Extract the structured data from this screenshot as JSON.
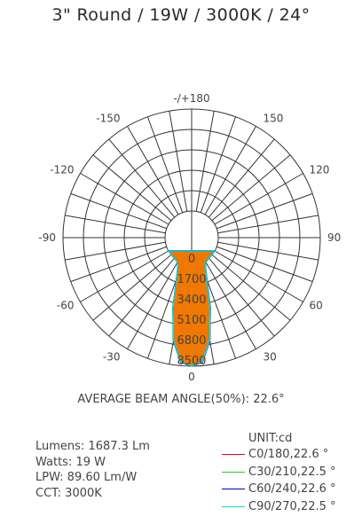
{
  "title": "3\" Round / 19W / 3000K / 24°",
  "beam_angle_text": "AVERAGE BEAM ANGLE(50%): 22.6°",
  "specs": {
    "lumens": "Lumens: 1687.3 Lm",
    "watts": "Watts: 19 W",
    "lpw": "LPW: 89.60 Lm/W",
    "cct": "CCT: 3000K"
  },
  "unit_label": "UNIT:cd",
  "chart_data": {
    "type": "polar",
    "angle_labels": [
      {
        "deg": 180,
        "text": "-/+180"
      },
      {
        "deg": 150,
        "text": "150"
      },
      {
        "deg": 120,
        "text": "120"
      },
      {
        "deg": 90,
        "text": "90"
      },
      {
        "deg": 60,
        "text": "60"
      },
      {
        "deg": 30,
        "text": "30"
      },
      {
        "deg": 0,
        "text": "0"
      },
      {
        "deg": -30,
        "text": "-30"
      },
      {
        "deg": -60,
        "text": "-60"
      },
      {
        "deg": -90,
        "text": "-90"
      },
      {
        "deg": -120,
        "text": "-120"
      },
      {
        "deg": -150,
        "text": "-150"
      }
    ],
    "radial_ticks": [
      "0",
      "1700",
      "3400",
      "5100",
      "6800",
      "8500"
    ],
    "rmax": 8500,
    "fill_color": "#f07800",
    "series": [
      {
        "name": "C0/180,22.6 °",
        "color": "#ff0000",
        "points": [
          [
            0,
            8500
          ],
          [
            5,
            8200
          ],
          [
            10,
            6500
          ],
          [
            15,
            3800
          ],
          [
            20,
            1500
          ],
          [
            25,
            500
          ],
          [
            30,
            150
          ],
          [
            40,
            30
          ],
          [
            60,
            0
          ]
        ]
      },
      {
        "name": "C30/210,22.5 °",
        "color": "#22cc22",
        "points": [
          [
            0,
            8500
          ],
          [
            5,
            8150
          ],
          [
            10,
            6450
          ],
          [
            15,
            3750
          ],
          [
            20,
            1450
          ],
          [
            25,
            480
          ],
          [
            30,
            140
          ],
          [
            40,
            30
          ],
          [
            60,
            0
          ]
        ]
      },
      {
        "name": "C60/240,22.6 °",
        "color": "#0000cc",
        "points": [
          [
            0,
            8500
          ],
          [
            5,
            8200
          ],
          [
            10,
            6500
          ],
          [
            15,
            3800
          ],
          [
            20,
            1500
          ],
          [
            25,
            500
          ],
          [
            30,
            150
          ],
          [
            40,
            30
          ],
          [
            60,
            0
          ]
        ]
      },
      {
        "name": "C90/270,22.5 °",
        "color": "#00e0e0",
        "points": [
          [
            0,
            8500
          ],
          [
            5,
            8150
          ],
          [
            10,
            6450
          ],
          [
            15,
            3750
          ],
          [
            20,
            1450
          ],
          [
            25,
            480
          ],
          [
            30,
            140
          ],
          [
            40,
            30
          ],
          [
            60,
            0
          ]
        ]
      }
    ]
  }
}
